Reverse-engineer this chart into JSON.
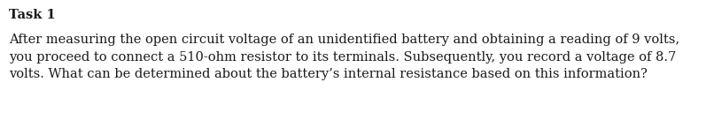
{
  "background_color": "#ffffff",
  "title": "Task 1",
  "title_fontsize": 10.5,
  "body_text": "After measuring the open circuit voltage of an unidentified battery and obtaining a reading of 9 volts,\nyou proceed to connect a 510-ohm resistor to its terminals. Subsequently, you record a voltage of 8.7\nvolts. What can be determined about the battery’s internal resistance based on this information?",
  "body_fontsize": 10.5,
  "text_color": "#1a1a1a",
  "font_family": "DejaVu Serif"
}
